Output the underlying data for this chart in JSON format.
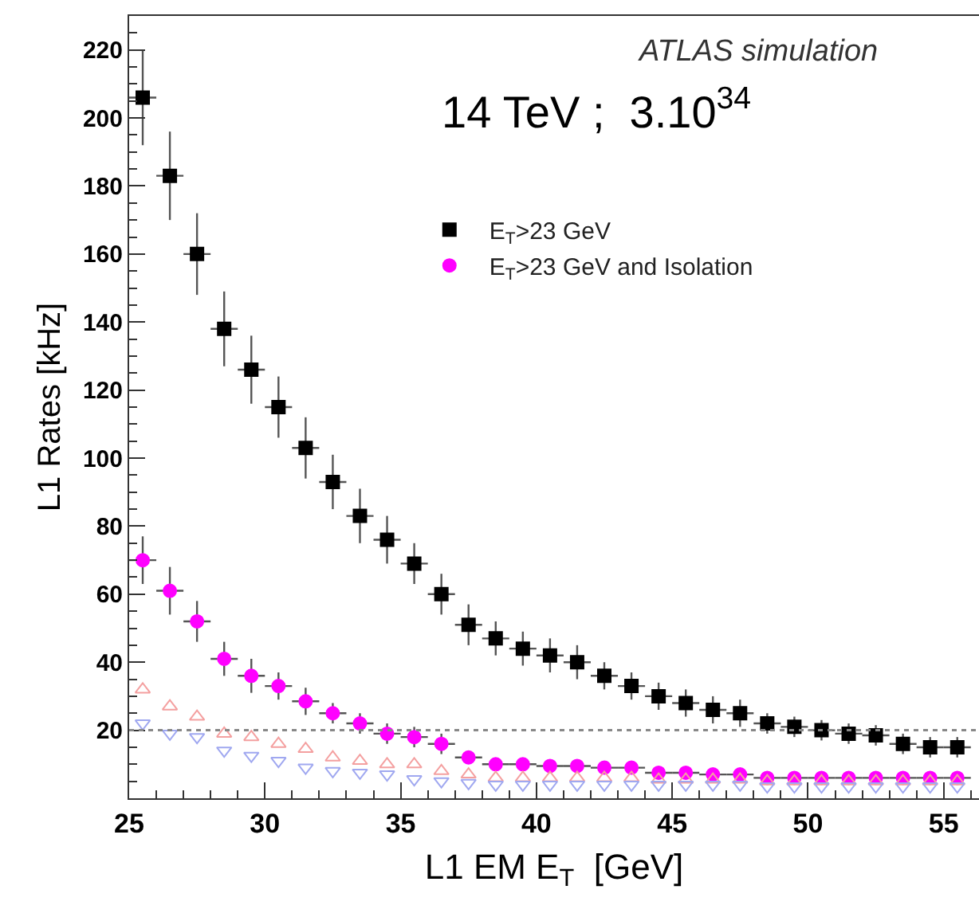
{
  "chart_data": {
    "type": "scatter",
    "xlabel": "L1 EM E$_{T}$  [GeV]",
    "ylabel": "L1 Rates [kHz]",
    "annotations": [
      "ATLAS simulation",
      "14 TeV ;  3.10$^{34}$"
    ],
    "x": [
      25.5,
      26.5,
      27.5,
      28.5,
      29.5,
      30.5,
      31.5,
      32.5,
      33.5,
      34.5,
      35.5,
      36.5,
      37.5,
      38.5,
      39.5,
      40.5,
      41.5,
      42.5,
      43.5,
      44.5,
      45.5,
      46.5,
      47.5,
      48.5,
      49.5,
      50.5,
      51.5,
      52.5,
      53.5,
      54.5,
      55.5
    ],
    "series": [
      {
        "name": "E$_{T}$>23 GeV",
        "color": "#000000",
        "marker": "square",
        "values": [
          206,
          183,
          160,
          138,
          126,
          115,
          103,
          93,
          83,
          76,
          69,
          60,
          51,
          47,
          44,
          42,
          40,
          36,
          33,
          30,
          28,
          26,
          25,
          22,
          21,
          20,
          19,
          18.5,
          16,
          15,
          15
        ],
        "errors": [
          14,
          13,
          12,
          11,
          10,
          9,
          9,
          8,
          8,
          7,
          6,
          6,
          6,
          5,
          5,
          5,
          5,
          4,
          4,
          4,
          4,
          4,
          4,
          3,
          3,
          3,
          3,
          3,
          3,
          3,
          3
        ],
        "xerrors": [
          0.5,
          0.5,
          0.5,
          0.5,
          0.5,
          0.5,
          0.5,
          0.5,
          0.5,
          0.5,
          0.5,
          0.5,
          0.5,
          0.5,
          0.5,
          0.5,
          0.5,
          0.5,
          0.5,
          0.5,
          0.5,
          0.5,
          0.5,
          0.5,
          0.5,
          0.5,
          0.5,
          0.5,
          0.5,
          0.5,
          0.5
        ]
      },
      {
        "name": "E$_{T}$>23 GeV and Isolation",
        "color": "#ff00ff",
        "marker": "circle",
        "values": [
          70,
          61,
          52,
          41,
          36,
          33,
          28.5,
          25,
          22,
          19,
          18,
          16,
          12,
          10,
          10,
          9.5,
          9.5,
          9,
          9,
          7.5,
          7.5,
          7,
          7,
          6,
          6,
          6,
          6,
          6,
          6,
          6,
          6
        ],
        "errors": [
          7,
          7,
          6,
          5,
          5,
          4,
          4,
          3,
          3,
          3,
          3,
          3,
          null,
          null,
          null,
          null,
          null,
          null,
          null,
          null,
          null,
          null,
          null,
          null,
          null,
          null,
          null,
          null,
          null,
          null,
          null
        ],
        "xerrors": [
          0.5,
          0.5,
          0.5,
          0.5,
          0.5,
          0.5,
          0.5,
          0.5,
          0.5,
          0.5,
          0.5,
          0.5,
          0.5,
          0.5,
          0.5,
          0.5,
          0.5,
          0.5,
          0.5,
          0.5,
          0.5,
          0.5,
          0.5,
          0.5,
          0.5,
          0.5,
          0.5,
          0.5,
          0.5,
          0.5,
          0.5
        ]
      },
      {
        "color": "#f4a0a0",
        "marker": "triangle-up-open",
        "values": [
          32,
          27,
          24,
          19,
          18,
          16,
          14.5,
          12,
          11,
          10,
          10,
          8,
          7,
          6,
          6,
          6,
          6,
          6,
          6,
          5.5,
          5.5,
          5.5,
          5.5,
          5,
          5,
          5,
          5,
          5,
          5,
          5,
          5
        ]
      },
      {
        "color": "#a0a8f0",
        "marker": "triangle-down-open",
        "values": [
          22,
          19,
          18,
          14,
          12.5,
          11,
          9,
          8,
          7.5,
          7,
          5.6,
          5,
          4.5,
          4,
          4,
          4,
          4,
          4,
          4,
          4,
          4,
          4,
          4,
          3.5,
          3.5,
          3.5,
          3.5,
          3.5,
          3.5,
          3.5,
          3.5
        ]
      }
    ],
    "xlim": [
      25,
      56.3
    ],
    "ylim": [
      0,
      230
    ],
    "xticks": [
      25,
      30,
      35,
      40,
      45,
      50,
      55
    ],
    "yticks": [
      20,
      40,
      60,
      80,
      100,
      120,
      140,
      160,
      180,
      200,
      220
    ],
    "ref_lines": [
      {
        "axis": "y",
        "value": 20,
        "color": "#888888",
        "line_style": "dotted"
      }
    ],
    "legend": "top right"
  }
}
